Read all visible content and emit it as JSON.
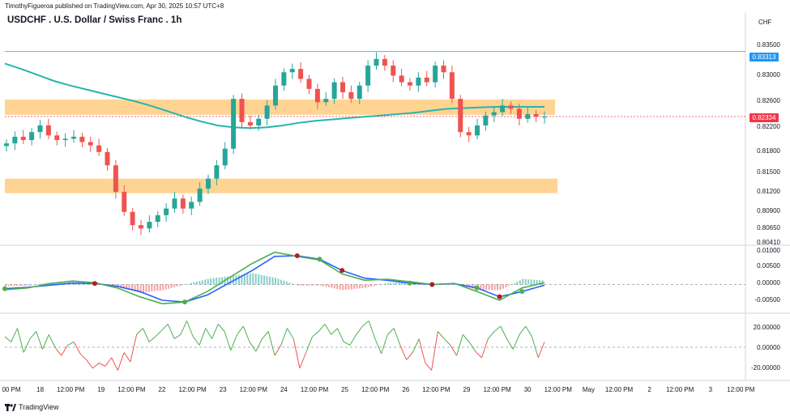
{
  "header": {
    "published": "TimothyFigueroa published on TradingView.com, Apr 30, 2025 10:57 UTC+8",
    "title": "USDCHF . U.S. Dollar / Swiss Franc . 1h",
    "currency": "CHF"
  },
  "price_axis": [
    "0.83500",
    "0.83000",
    "0.82600",
    "0.82200",
    "0.81800",
    "0.81500",
    "0.81200",
    "0.80900",
    "0.80650",
    "0.80410"
  ],
  "price_tags": {
    "upper_line": "0.83313",
    "last_price": "0.82334"
  },
  "macd_axis": [
    "0.01000",
    "0.00500",
    "0.00000",
    "-0.00500"
  ],
  "osc_axis": [
    "20.00000",
    "0.00000",
    "-20.00000"
  ],
  "time_axis": [
    "00 PM",
    "18",
    "12:00 PM",
    "19",
    "12:00 PM",
    "22",
    "12:00 PM",
    "23",
    "12:00 PM",
    "24",
    "12:00 PM",
    "25",
    "12:00 PM",
    "26",
    "12:00 PM",
    "29",
    "12:00 PM",
    "30",
    "12:00 PM",
    "May",
    "12:00 PM",
    "2",
    "12:00 PM",
    "3",
    "12:00 PM"
  ],
  "footer": {
    "brand": "TradingView"
  },
  "colors": {
    "up": "#26a69a",
    "down": "#ef5350",
    "zone": "#ffcc80",
    "ma": "#26b5ad",
    "hline": "#4fb3e8",
    "last": "#f23645"
  },
  "chart_data": {
    "type": "candlestick",
    "symbol": "USDCHF",
    "interval": "1h",
    "ylim": [
      0.8041,
      0.836
    ],
    "last_price": 0.82334,
    "upper_line": 0.83313,
    "zones": [
      [
        0.8236,
        0.8259
      ],
      [
        0.8118,
        0.814
      ]
    ],
    "ma_path": [
      0.8313,
      0.8305,
      0.8296,
      0.8287,
      0.828,
      0.8274,
      0.8268,
      0.8262,
      0.8256,
      0.8249,
      0.8241,
      0.8233,
      0.8226,
      0.822,
      0.8217,
      0.8216,
      0.8217,
      0.822,
      0.8224,
      0.8227,
      0.8229,
      0.8231,
      0.8233,
      0.8235,
      0.8237,
      0.8239,
      0.8242,
      0.8245,
      0.8246,
      0.8247,
      0.8248,
      0.8248,
      0.8248,
      0.8248
    ],
    "closes": [
      0.8193,
      0.8203,
      0.8198,
      0.821,
      0.822,
      0.8205,
      0.8198,
      0.82,
      0.8203,
      0.8195,
      0.819,
      0.818,
      0.816,
      0.812,
      0.809,
      0.807,
      0.8065,
      0.8075,
      0.8085,
      0.8095,
      0.811,
      0.8095,
      0.8105,
      0.8125,
      0.814,
      0.816,
      0.8185,
      0.826,
      0.8225,
      0.822,
      0.823,
      0.825,
      0.828,
      0.83,
      0.8305,
      0.829,
      0.8275,
      0.8255,
      0.826,
      0.8285,
      0.827,
      0.826,
      0.828,
      0.831,
      0.832,
      0.831,
      0.8295,
      0.8285,
      0.828,
      0.8292,
      0.8285,
      0.831,
      0.83,
      0.826,
      0.821,
      0.8205,
      0.822,
      0.8235,
      0.824,
      0.825,
      0.8245,
      0.823,
      0.8237,
      0.8233,
      0.8233
    ]
  },
  "macd": {
    "zero": 0,
    "range": [
      -0.0075,
      0.0105
    ],
    "fast": [
      -0.0015,
      -0.001,
      0.0002,
      0.001,
      0.0005,
      -0.001,
      -0.0035,
      -0.0055,
      -0.005,
      -0.002,
      0.002,
      0.006,
      0.0092,
      0.008,
      0.007,
      0.003,
      0.0012,
      0.0015,
      0.0008,
      0.0,
      0.0003,
      -0.002,
      -0.0045,
      -0.001,
      0.0005
    ],
    "slow": [
      -0.0012,
      -0.0008,
      -0.0002,
      0.0004,
      0.0003,
      -0.0005,
      -0.002,
      -0.0045,
      -0.005,
      -0.003,
      0.0005,
      0.004,
      0.008,
      0.0082,
      0.0072,
      0.004,
      0.0018,
      0.0012,
      0.0004,
      0.0,
      0.0002,
      -0.001,
      -0.0035,
      -0.002,
      -0.0002
    ]
  },
  "osc": {
    "range": [
      -30,
      30
    ],
    "values": [
      10,
      5,
      18,
      -5,
      8,
      15,
      -2,
      12,
      0,
      -8,
      2,
      5,
      -6,
      -12,
      -20,
      -15,
      -18,
      -10,
      -22,
      -5,
      -14,
      12,
      18,
      5,
      10,
      16,
      22,
      8,
      12,
      25,
      10,
      2,
      18,
      8,
      22,
      15,
      -3,
      12,
      20,
      5,
      -4,
      8,
      15,
      -8,
      2,
      18,
      8,
      -20,
      -5,
      10,
      15,
      22,
      12,
      18,
      5,
      2,
      12,
      20,
      25,
      8,
      -6,
      12,
      18,
      2,
      -12,
      -5,
      8,
      -15,
      -22,
      15,
      8,
      2,
      -8,
      12,
      5,
      -4,
      -10,
      8,
      15,
      20,
      8,
      -2,
      12,
      20,
      10,
      -10,
      5
    ]
  }
}
